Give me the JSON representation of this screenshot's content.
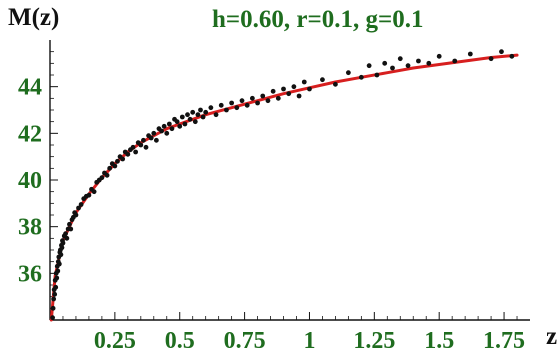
{
  "chart_data": {
    "type": "scatter",
    "title": "h=0.60, r=0.1, g=0.1",
    "ylabel": "M(z)",
    "xlabel": "z",
    "xlim": [
      0,
      1.85
    ],
    "ylim": [
      34,
      46
    ],
    "xticks": [
      0.25,
      0.5,
      0.75,
      1,
      1.25,
      1.5,
      1.75
    ],
    "xtick_labels": [
      "0.25",
      "0.5",
      "0.75",
      "1",
      "1.25",
      "1.5",
      "1.75"
    ],
    "yticks": [
      36,
      38,
      40,
      42,
      44
    ],
    "ytick_labels": [
      "36",
      "38",
      "40",
      "42",
      "44"
    ],
    "grid": false,
    "series": [
      {
        "kind": "points",
        "color": "#111111",
        "points": [
          [
            0.01,
            34.1
          ],
          [
            0.012,
            34.5
          ],
          [
            0.014,
            34.9
          ],
          [
            0.016,
            35.3
          ],
          [
            0.018,
            35.1
          ],
          [
            0.02,
            35.7
          ],
          [
            0.022,
            35.4
          ],
          [
            0.024,
            36.0
          ],
          [
            0.026,
            35.8
          ],
          [
            0.028,
            36.3
          ],
          [
            0.03,
            36.1
          ],
          [
            0.032,
            36.5
          ],
          [
            0.034,
            36.7
          ],
          [
            0.036,
            36.4
          ],
          [
            0.038,
            36.9
          ],
          [
            0.04,
            37.0
          ],
          [
            0.042,
            36.8
          ],
          [
            0.044,
            37.2
          ],
          [
            0.046,
            37.1
          ],
          [
            0.048,
            37.4
          ],
          [
            0.05,
            37.3
          ],
          [
            0.055,
            37.6
          ],
          [
            0.06,
            37.7
          ],
          [
            0.065,
            37.5
          ],
          [
            0.07,
            37.9
          ],
          [
            0.075,
            38.1
          ],
          [
            0.08,
            37.9
          ],
          [
            0.085,
            38.3
          ],
          [
            0.09,
            38.4
          ],
          [
            0.095,
            38.6
          ],
          [
            0.1,
            38.5
          ],
          [
            0.11,
            38.8
          ],
          [
            0.12,
            38.95
          ],
          [
            0.13,
            39.2
          ],
          [
            0.14,
            39.3
          ],
          [
            0.15,
            39.35
          ],
          [
            0.16,
            39.6
          ],
          [
            0.17,
            39.5
          ],
          [
            0.18,
            39.9
          ],
          [
            0.19,
            40.0
          ],
          [
            0.2,
            40.1
          ],
          [
            0.21,
            40.3
          ],
          [
            0.22,
            40.2
          ],
          [
            0.23,
            40.5
          ],
          [
            0.24,
            40.7
          ],
          [
            0.25,
            40.6
          ],
          [
            0.26,
            40.8
          ],
          [
            0.27,
            41.0
          ],
          [
            0.28,
            40.9
          ],
          [
            0.29,
            41.2
          ],
          [
            0.3,
            41.1
          ],
          [
            0.31,
            41.3
          ],
          [
            0.32,
            41.4
          ],
          [
            0.33,
            41.2
          ],
          [
            0.34,
            41.6
          ],
          [
            0.35,
            41.5
          ],
          [
            0.36,
            41.7
          ],
          [
            0.37,
            41.4
          ],
          [
            0.38,
            41.9
          ],
          [
            0.39,
            41.8
          ],
          [
            0.4,
            42.0
          ],
          [
            0.41,
            41.7
          ],
          [
            0.42,
            42.2
          ],
          [
            0.43,
            42.1
          ],
          [
            0.44,
            42.3
          ],
          [
            0.45,
            42.0
          ],
          [
            0.46,
            42.4
          ],
          [
            0.47,
            42.2
          ],
          [
            0.48,
            42.6
          ],
          [
            0.49,
            42.5
          ],
          [
            0.5,
            42.3
          ],
          [
            0.51,
            42.7
          ],
          [
            0.52,
            42.4
          ],
          [
            0.53,
            42.8
          ],
          [
            0.54,
            42.6
          ],
          [
            0.55,
            42.9
          ],
          [
            0.56,
            42.5
          ],
          [
            0.57,
            42.8
          ],
          [
            0.58,
            43.0
          ],
          [
            0.59,
            42.7
          ],
          [
            0.6,
            42.9
          ],
          [
            0.62,
            43.1
          ],
          [
            0.64,
            42.8
          ],
          [
            0.66,
            43.2
          ],
          [
            0.68,
            43.0
          ],
          [
            0.7,
            43.3
          ],
          [
            0.72,
            43.1
          ],
          [
            0.74,
            43.4
          ],
          [
            0.76,
            43.2
          ],
          [
            0.78,
            43.5
          ],
          [
            0.8,
            43.3
          ],
          [
            0.82,
            43.6
          ],
          [
            0.84,
            43.4
          ],
          [
            0.86,
            43.8
          ],
          [
            0.88,
            43.5
          ],
          [
            0.9,
            43.9
          ],
          [
            0.92,
            43.7
          ],
          [
            0.94,
            44.0
          ],
          [
            0.96,
            43.6
          ],
          [
            0.98,
            44.2
          ],
          [
            1.0,
            43.9
          ],
          [
            1.05,
            44.3
          ],
          [
            1.1,
            44.1
          ],
          [
            1.15,
            44.6
          ],
          [
            1.2,
            44.4
          ],
          [
            1.23,
            44.9
          ],
          [
            1.26,
            44.5
          ],
          [
            1.29,
            45.0
          ],
          [
            1.32,
            44.8
          ],
          [
            1.35,
            45.2
          ],
          [
            1.38,
            44.9
          ],
          [
            1.42,
            45.1
          ],
          [
            1.46,
            45.0
          ],
          [
            1.5,
            45.3
          ],
          [
            1.56,
            45.1
          ],
          [
            1.62,
            45.4
          ],
          [
            1.7,
            45.2
          ],
          [
            1.74,
            45.5
          ],
          [
            1.78,
            45.3
          ]
        ]
      },
      {
        "kind": "line",
        "color": "#d71f1f",
        "points": [
          [
            0.005,
            34.0
          ],
          [
            0.02,
            35.9
          ],
          [
            0.05,
            37.4
          ],
          [
            0.1,
            38.6
          ],
          [
            0.15,
            39.4
          ],
          [
            0.2,
            40.1
          ],
          [
            0.25,
            40.7
          ],
          [
            0.3,
            41.2
          ],
          [
            0.35,
            41.6
          ],
          [
            0.4,
            41.9
          ],
          [
            0.45,
            42.2
          ],
          [
            0.5,
            42.4
          ],
          [
            0.6,
            42.8
          ],
          [
            0.7,
            43.1
          ],
          [
            0.8,
            43.4
          ],
          [
            0.9,
            43.7
          ],
          [
            1.0,
            43.95
          ],
          [
            1.1,
            44.2
          ],
          [
            1.2,
            44.4
          ],
          [
            1.3,
            44.6
          ],
          [
            1.4,
            44.8
          ],
          [
            1.5,
            44.95
          ],
          [
            1.6,
            45.1
          ],
          [
            1.7,
            45.25
          ],
          [
            1.8,
            45.35
          ]
        ]
      }
    ]
  }
}
